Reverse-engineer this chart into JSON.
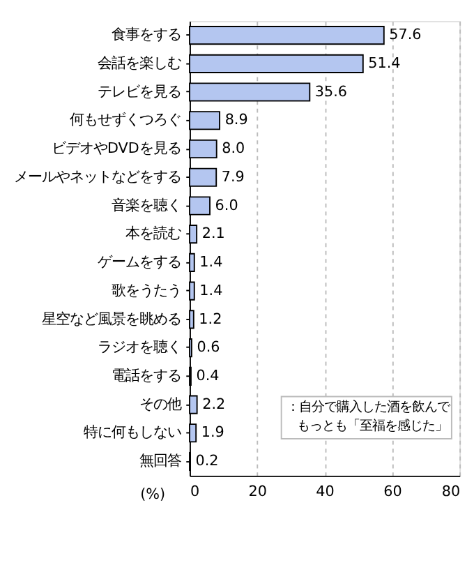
{
  "chart_data": {
    "type": "bar",
    "orientation": "horizontal",
    "xlabel": "(%)",
    "categories": [
      "食事をする",
      "会話を楽しむ",
      "テレビを見る",
      "何もせずくつろぐ",
      "ビデオやDVDを見る",
      "メールやネットなどをする",
      "音楽を聴く",
      "本を読む",
      "ゲームをする",
      "歌をうたう",
      "星空など風景を眺める",
      "ラジオを聴く",
      "電話をする",
      "その他",
      "特に何もしない",
      "無回答"
    ],
    "values": [
      57.6,
      51.4,
      35.6,
      8.9,
      8.0,
      7.9,
      6.0,
      2.1,
      1.4,
      1.4,
      1.2,
      0.6,
      0.4,
      2.2,
      1.9,
      0.2
    ],
    "value_labels": [
      "57.6",
      "51.4",
      "35.6",
      "8.9",
      "8.0",
      "7.9",
      "6.0",
      "2.1",
      "1.4",
      "1.4",
      "1.2",
      "0.6",
      "0.4",
      "2.2",
      "1.9",
      "0.2"
    ],
    "color": "#b4c6f0",
    "xlim": [
      0,
      80
    ],
    "xticks": [
      0,
      20,
      40,
      60,
      80
    ],
    "grid": "x",
    "annotations": [
      "：自分で購入した酒を飲んで",
      "もっとも「至福を感じた」"
    ]
  }
}
